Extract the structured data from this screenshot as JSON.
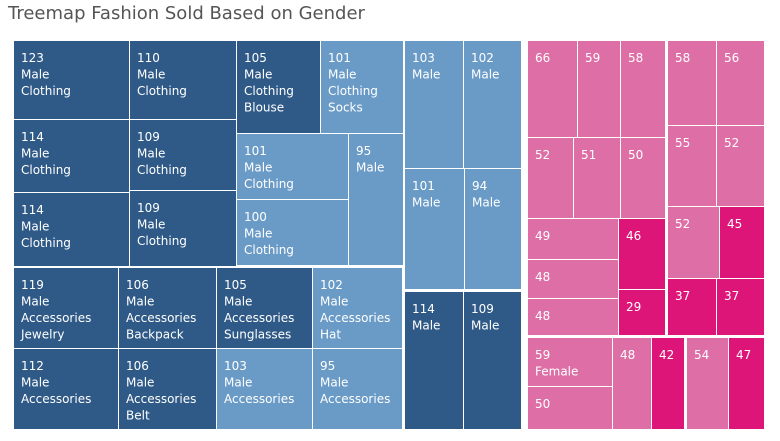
{
  "chart_data": {
    "type": "treemap",
    "title": "Treemap Fashion Sold Based on Gender",
    "colors": {
      "dark_blue": "#2f5a87",
      "mid_blue": "#6a9bc7",
      "pink": "#de6fa6",
      "magenta": "#de1578",
      "border": "#ffffff",
      "title": "#555555"
    },
    "cells": [
      {
        "value": 123,
        "labels": [
          "Male",
          "Clothing"
        ],
        "color": "dark_blue"
      },
      {
        "value": 110,
        "labels": [
          "Male",
          "Clothing"
        ],
        "color": "dark_blue"
      },
      {
        "value": 105,
        "labels": [
          "Male",
          "Clothing",
          "Blouse"
        ],
        "color": "dark_blue"
      },
      {
        "value": 101,
        "labels": [
          "Male",
          "Clothing",
          "Socks"
        ],
        "color": "mid_blue"
      },
      {
        "value": 114,
        "labels": [
          "Male",
          "Clothing"
        ],
        "color": "dark_blue"
      },
      {
        "value": 109,
        "labels": [
          "Male",
          "Clothing"
        ],
        "color": "dark_blue"
      },
      {
        "value": 101,
        "labels": [
          "Male",
          "Clothing"
        ],
        "color": "mid_blue"
      },
      {
        "value": 95,
        "labels": [
          "Male"
        ],
        "color": "mid_blue"
      },
      {
        "value": 114,
        "labels": [
          "Male",
          "Clothing"
        ],
        "color": "dark_blue"
      },
      {
        "value": 109,
        "labels": [
          "Male",
          "Clothing"
        ],
        "color": "dark_blue"
      },
      {
        "value": 100,
        "labels": [
          "Male",
          "Clothing"
        ],
        "color": "mid_blue"
      },
      {
        "value": 119,
        "labels": [
          "Male",
          "Accessories",
          "Jewelry"
        ],
        "color": "dark_blue"
      },
      {
        "value": 106,
        "labels": [
          "Male",
          "Accessories",
          "Backpack"
        ],
        "color": "dark_blue"
      },
      {
        "value": 105,
        "labels": [
          "Male",
          "Accessories",
          "Sunglasses"
        ],
        "color": "dark_blue"
      },
      {
        "value": 102,
        "labels": [
          "Male",
          "Accessories",
          "Hat"
        ],
        "color": "mid_blue"
      },
      {
        "value": 112,
        "labels": [
          "Male",
          "Accessories"
        ],
        "color": "dark_blue"
      },
      {
        "value": 106,
        "labels": [
          "Male",
          "Accessories",
          "Belt"
        ],
        "color": "dark_blue"
      },
      {
        "value": 103,
        "labels": [
          "Male",
          "Accessories"
        ],
        "color": "mid_blue"
      },
      {
        "value": 95,
        "labels": [
          "Male",
          "Accessories"
        ],
        "color": "mid_blue"
      },
      {
        "value": 103,
        "labels": [
          "Male"
        ],
        "color": "mid_blue"
      },
      {
        "value": 102,
        "labels": [
          "Male"
        ],
        "color": "mid_blue"
      },
      {
        "value": 101,
        "labels": [
          "Male"
        ],
        "color": "mid_blue"
      },
      {
        "value": 94,
        "labels": [
          "Male"
        ],
        "color": "mid_blue"
      },
      {
        "value": 114,
        "labels": [
          "Male"
        ],
        "color": "dark_blue"
      },
      {
        "value": 109,
        "labels": [
          "Male"
        ],
        "color": "dark_blue"
      },
      {
        "value": 66,
        "labels": [],
        "color": "pink"
      },
      {
        "value": 59,
        "labels": [],
        "color": "pink"
      },
      {
        "value": 58,
        "labels": [],
        "color": "pink"
      },
      {
        "value": 52,
        "labels": [],
        "color": "pink"
      },
      {
        "value": 51,
        "labels": [],
        "color": "pink"
      },
      {
        "value": 50,
        "labels": [],
        "color": "pink"
      },
      {
        "value": 49,
        "labels": [],
        "color": "pink"
      },
      {
        "value": 46,
        "labels": [],
        "color": "magenta"
      },
      {
        "value": 48,
        "labels": [],
        "color": "pink"
      },
      {
        "value": 29,
        "labels": [],
        "color": "magenta"
      },
      {
        "value": 48,
        "labels": [],
        "color": "pink"
      },
      {
        "value": 58,
        "labels": [],
        "color": "pink"
      },
      {
        "value": 56,
        "labels": [],
        "color": "pink"
      },
      {
        "value": 55,
        "labels": [],
        "color": "pink"
      },
      {
        "value": 52,
        "labels": [],
        "color": "pink"
      },
      {
        "value": 52,
        "labels": [],
        "color": "pink"
      },
      {
        "value": 45,
        "labels": [],
        "color": "magenta"
      },
      {
        "value": 37,
        "labels": [],
        "color": "magenta"
      },
      {
        "value": 37,
        "labels": [],
        "color": "magenta"
      },
      {
        "value": 59,
        "labels": [
          "Female"
        ],
        "color": "pink"
      },
      {
        "value": 50,
        "labels": [],
        "color": "pink"
      },
      {
        "value": 48,
        "labels": [],
        "color": "pink"
      },
      {
        "value": 42,
        "labels": [],
        "color": "magenta"
      },
      {
        "value": 54,
        "labels": [],
        "color": "pink"
      },
      {
        "value": 47,
        "labels": [],
        "color": "magenta"
      }
    ]
  }
}
